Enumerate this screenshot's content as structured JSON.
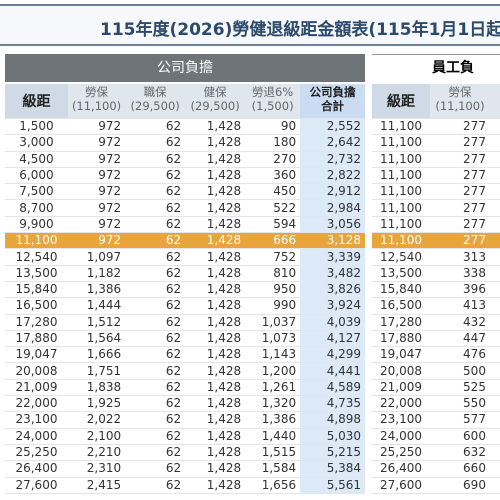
{
  "title": "115年度(2026)勞健退級距金額表(115年1月1日起",
  "sections": [
    "公司負擔",
    "員工負"
  ],
  "left_table": {
    "headers": [
      {
        "label": "級距"
      },
      {
        "label": "勞保",
        "sub": "(11,100)"
      },
      {
        "label": "職保",
        "sub": "(29,500)"
      },
      {
        "label": "健保",
        "sub": "(29,500)"
      },
      {
        "label": "勞退6%",
        "sub": "(1,500)"
      },
      {
        "label": "公司負擔",
        "sub": "合計"
      }
    ],
    "rows": [
      [
        "1,500",
        "972",
        "62",
        "1,428",
        "90",
        "2,552"
      ],
      [
        "3,000",
        "972",
        "62",
        "1,428",
        "180",
        "2,642"
      ],
      [
        "4,500",
        "972",
        "62",
        "1,428",
        "270",
        "2,732"
      ],
      [
        "6,000",
        "972",
        "62",
        "1,428",
        "360",
        "2,822"
      ],
      [
        "7,500",
        "972",
        "62",
        "1,428",
        "450",
        "2,912"
      ],
      [
        "8,700",
        "972",
        "62",
        "1,428",
        "522",
        "2,984"
      ],
      [
        "9,900",
        "972",
        "62",
        "1,428",
        "594",
        "3,056"
      ],
      [
        "11,100",
        "972",
        "62",
        "1,428",
        "666",
        "3,128"
      ],
      [
        "12,540",
        "1,097",
        "62",
        "1,428",
        "752",
        "3,339"
      ],
      [
        "13,500",
        "1,182",
        "62",
        "1,428",
        "810",
        "3,482"
      ],
      [
        "15,840",
        "1,386",
        "62",
        "1,428",
        "950",
        "3,826"
      ],
      [
        "16,500",
        "1,444",
        "62",
        "1,428",
        "990",
        "3,924"
      ],
      [
        "17,280",
        "1,512",
        "62",
        "1,428",
        "1,037",
        "4,039"
      ],
      [
        "17,880",
        "1,564",
        "62",
        "1,428",
        "1,073",
        "4,127"
      ],
      [
        "19,047",
        "1,666",
        "62",
        "1,428",
        "1,143",
        "4,299"
      ],
      [
        "20,008",
        "1,751",
        "62",
        "1,428",
        "1,200",
        "4,441"
      ],
      [
        "21,009",
        "1,838",
        "62",
        "1,428",
        "1,261",
        "4,589"
      ],
      [
        "22,000",
        "1,925",
        "62",
        "1,428",
        "1,320",
        "4,735"
      ],
      [
        "23,100",
        "2,022",
        "62",
        "1,428",
        "1,386",
        "4,898"
      ],
      [
        "24,000",
        "2,100",
        "62",
        "1,428",
        "1,440",
        "5,030"
      ],
      [
        "25,250",
        "2,210",
        "62",
        "1,428",
        "1,515",
        "5,215"
      ],
      [
        "26,400",
        "2,310",
        "62",
        "1,428",
        "1,584",
        "5,384"
      ],
      [
        "27,600",
        "2,415",
        "62",
        "1,428",
        "1,656",
        "5,561"
      ]
    ]
  },
  "right_table": {
    "headers": [
      {
        "label": "級距"
      },
      {
        "label": "勞保",
        "sub": "(11,100)"
      }
    ],
    "rows": [
      [
        "11,100",
        "277"
      ],
      [
        "11,100",
        "277"
      ],
      [
        "11,100",
        "277"
      ],
      [
        "11,100",
        "277"
      ],
      [
        "11,100",
        "277"
      ],
      [
        "11,100",
        "277"
      ],
      [
        "11,100",
        "277"
      ],
      [
        "11,100",
        "277"
      ],
      [
        "12,540",
        "313"
      ],
      [
        "13,500",
        "338"
      ],
      [
        "15,840",
        "396"
      ],
      [
        "16,500",
        "413"
      ],
      [
        "17,280",
        "432"
      ],
      [
        "17,880",
        "447"
      ],
      [
        "19,047",
        "476"
      ],
      [
        "20,008",
        "500"
      ],
      [
        "21,009",
        "525"
      ],
      [
        "22,000",
        "550"
      ],
      [
        "23,100",
        "577"
      ],
      [
        "24,000",
        "600"
      ],
      [
        "25,250",
        "632"
      ],
      [
        "26,400",
        "660"
      ],
      [
        "27,600",
        "690"
      ]
    ]
  },
  "highlighted_row": 7
}
